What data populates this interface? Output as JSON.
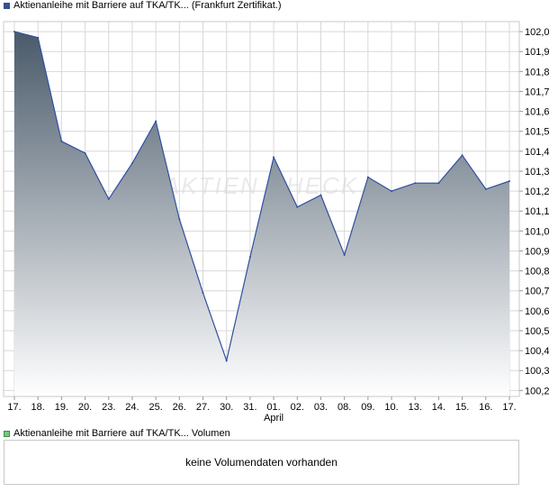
{
  "legend": {
    "title": "Aktienanleihe mit Barriere auf TKA/TK... (Frankfurt Zertifikat.)",
    "color": "#3a4f8f"
  },
  "volume": {
    "legend": "Aktienanleihe mit Barriere auf TKA/TK... Volumen",
    "color": "#7bc47f",
    "message": "keine Volumendaten vorhanden"
  },
  "watermark": "AKTIEN CHECK",
  "colors": {
    "line": "#2f4fa0",
    "fill_top": "#4a5a6a",
    "fill_bottom": "#ffffff",
    "grid": "#d8d8d8"
  },
  "chart_data": {
    "type": "area",
    "categories": [
      "17.",
      "18.",
      "19.",
      "20.",
      "23.",
      "24.",
      "25.",
      "26.",
      "27.",
      "30.",
      "31.",
      "01.",
      "02.",
      "03.",
      "08.",
      "09.",
      "10.",
      "13.",
      "14.",
      "15.",
      "16.",
      "17."
    ],
    "month_labels": [
      {
        "index": 11,
        "label": "April"
      }
    ],
    "values": [
      102.0,
      101.97,
      101.45,
      101.39,
      101.16,
      101.34,
      101.55,
      101.06,
      100.69,
      100.35,
      100.87,
      101.37,
      101.12,
      101.18,
      100.88,
      101.27,
      101.2,
      101.24,
      101.24,
      101.38,
      101.21,
      101.25
    ],
    "ylim": [
      100.17,
      102.05
    ],
    "yticks": [
      "102,0",
      "101,9",
      "101,8",
      "101,7",
      "101,6",
      "101,5",
      "101,4",
      "101,3",
      "101,2",
      "101,1",
      "101,0",
      "100,9",
      "100,8",
      "100,7",
      "100,6",
      "100,5",
      "100,4",
      "100,3",
      "100,2"
    ],
    "grid": true,
    "y_axis_side": "right"
  }
}
